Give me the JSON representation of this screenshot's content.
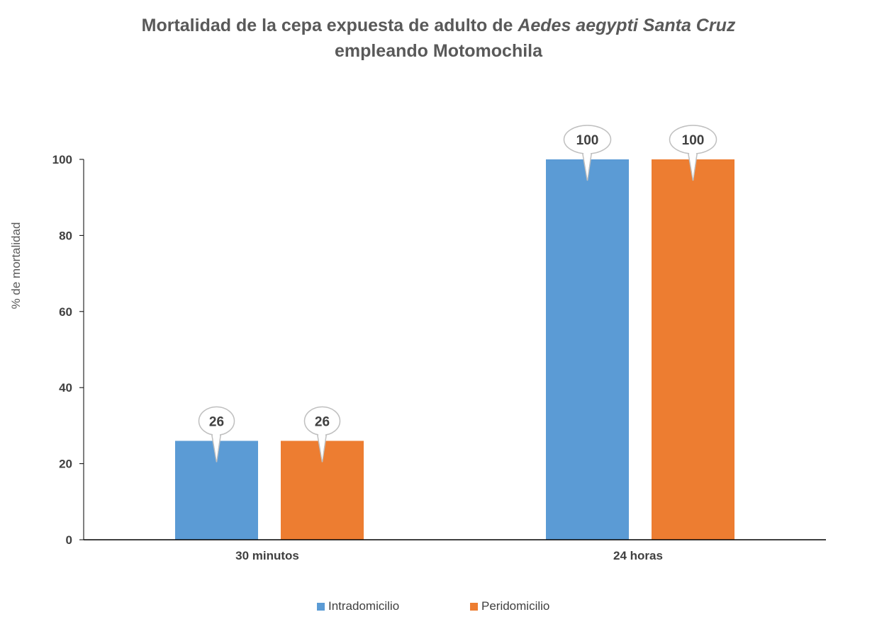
{
  "title": {
    "part1": "Mortalidad de la cepa  expuesta de adulto de ",
    "italic": "Aedes aegypti Santa Cruz",
    "line2": "empleando Motomochila"
  },
  "chart_data": {
    "type": "bar",
    "categories": [
      "30 minutos",
      "24  horas"
    ],
    "series": [
      {
        "name": "Intradomicilio",
        "values": [
          26,
          100
        ],
        "color": "#5B9BD5"
      },
      {
        "name": "Peridomicilio",
        "values": [
          26,
          100
        ],
        "color": "#ED7D31"
      }
    ],
    "xlabel": "",
    "ylabel": "% de mortalidad",
    "ylim": [
      0,
      100
    ],
    "yticks": [
      0,
      20,
      40,
      60,
      80,
      100
    ],
    "grid": false,
    "legend": "bottom-center",
    "data_labels": true,
    "data_label_style": "callout"
  }
}
